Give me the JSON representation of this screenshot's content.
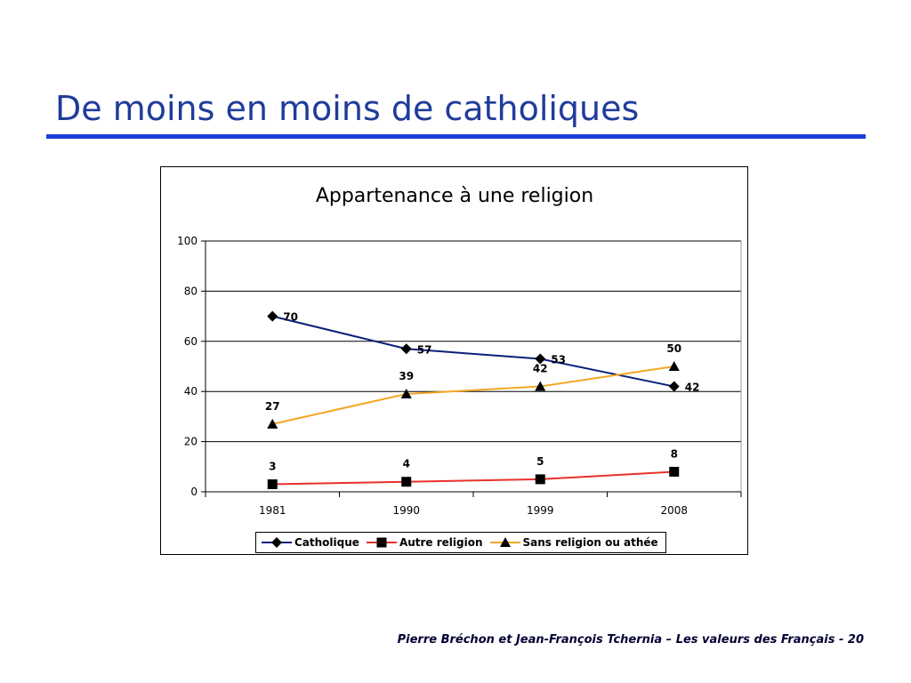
{
  "slide": {
    "title": "De moins en moins de catholiques",
    "footer": "Pierre Bréchon et Jean-François Tchernia – Les valeurs des Français - 20"
  },
  "chart_data": {
    "type": "line",
    "title": "Appartenance à une religion",
    "categories": [
      "1981",
      "1990",
      "1999",
      "2008"
    ],
    "series": [
      {
        "name": "Catholique",
        "values": [
          70,
          57,
          53,
          42
        ],
        "color": "#0a1f7a",
        "marker": "diamond"
      },
      {
        "name": "Autre religion",
        "values": [
          3,
          4,
          5,
          8
        ],
        "color": "#e8312a",
        "marker": "square"
      },
      {
        "name": "Sans religion ou athée",
        "values": [
          27,
          39,
          42,
          50
        ],
        "color": "#f5a623",
        "marker": "triangle"
      }
    ],
    "ylim": [
      0,
      100
    ],
    "yticks": [
      0,
      20,
      40,
      60,
      80,
      100
    ],
    "grid": "horizontal",
    "legend": "bottom",
    "data_labels": true
  }
}
